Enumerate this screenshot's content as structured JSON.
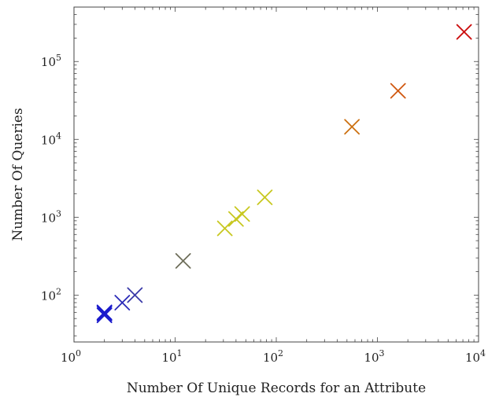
{
  "chart_data": {
    "type": "scatter",
    "title": "",
    "xlabel": "Number Of Unique Records for an Attribute",
    "ylabel": "Number Of Queries",
    "xscale": "log",
    "yscale": "log",
    "xlim": [
      1,
      10000
    ],
    "ylim": [
      25,
      500000
    ],
    "grid": false,
    "marker": "cross",
    "x_ticks": [
      {
        "base": "10",
        "exp": "0",
        "value": 1
      },
      {
        "base": "10",
        "exp": "1",
        "value": 10
      },
      {
        "base": "10",
        "exp": "2",
        "value": 100
      },
      {
        "base": "10",
        "exp": "3",
        "value": 1000
      },
      {
        "base": "10",
        "exp": "4",
        "value": 10000
      }
    ],
    "y_ticks": [
      {
        "base": "10",
        "exp": "2",
        "value": 100
      },
      {
        "base": "10",
        "exp": "3",
        "value": 1000
      },
      {
        "base": "10",
        "exp": "4",
        "value": 10000
      },
      {
        "base": "10",
        "exp": "5",
        "value": 100000
      }
    ],
    "points": [
      {
        "x": 2,
        "y": 55,
        "color": "#1a1acc"
      },
      {
        "x": 2,
        "y": 58,
        "color": "#1a1acc"
      },
      {
        "x": 2,
        "y": 60,
        "color": "#1a1acc"
      },
      {
        "x": 3,
        "y": 80,
        "color": "#2a2ab8"
      },
      {
        "x": 4,
        "y": 100,
        "color": "#3a3aa8"
      },
      {
        "x": 12,
        "y": 275,
        "color": "#6e6e5a"
      },
      {
        "x": 31,
        "y": 720,
        "color": "#c8c820"
      },
      {
        "x": 40,
        "y": 950,
        "color": "#c8c820"
      },
      {
        "x": 46,
        "y": 1100,
        "color": "#c8c820"
      },
      {
        "x": 77,
        "y": 1800,
        "color": "#c8c820"
      },
      {
        "x": 560,
        "y": 14500,
        "color": "#cc7010"
      },
      {
        "x": 1600,
        "y": 42000,
        "color": "#d05810"
      },
      {
        "x": 7200,
        "y": 240000,
        "color": "#cc1010"
      }
    ]
  }
}
